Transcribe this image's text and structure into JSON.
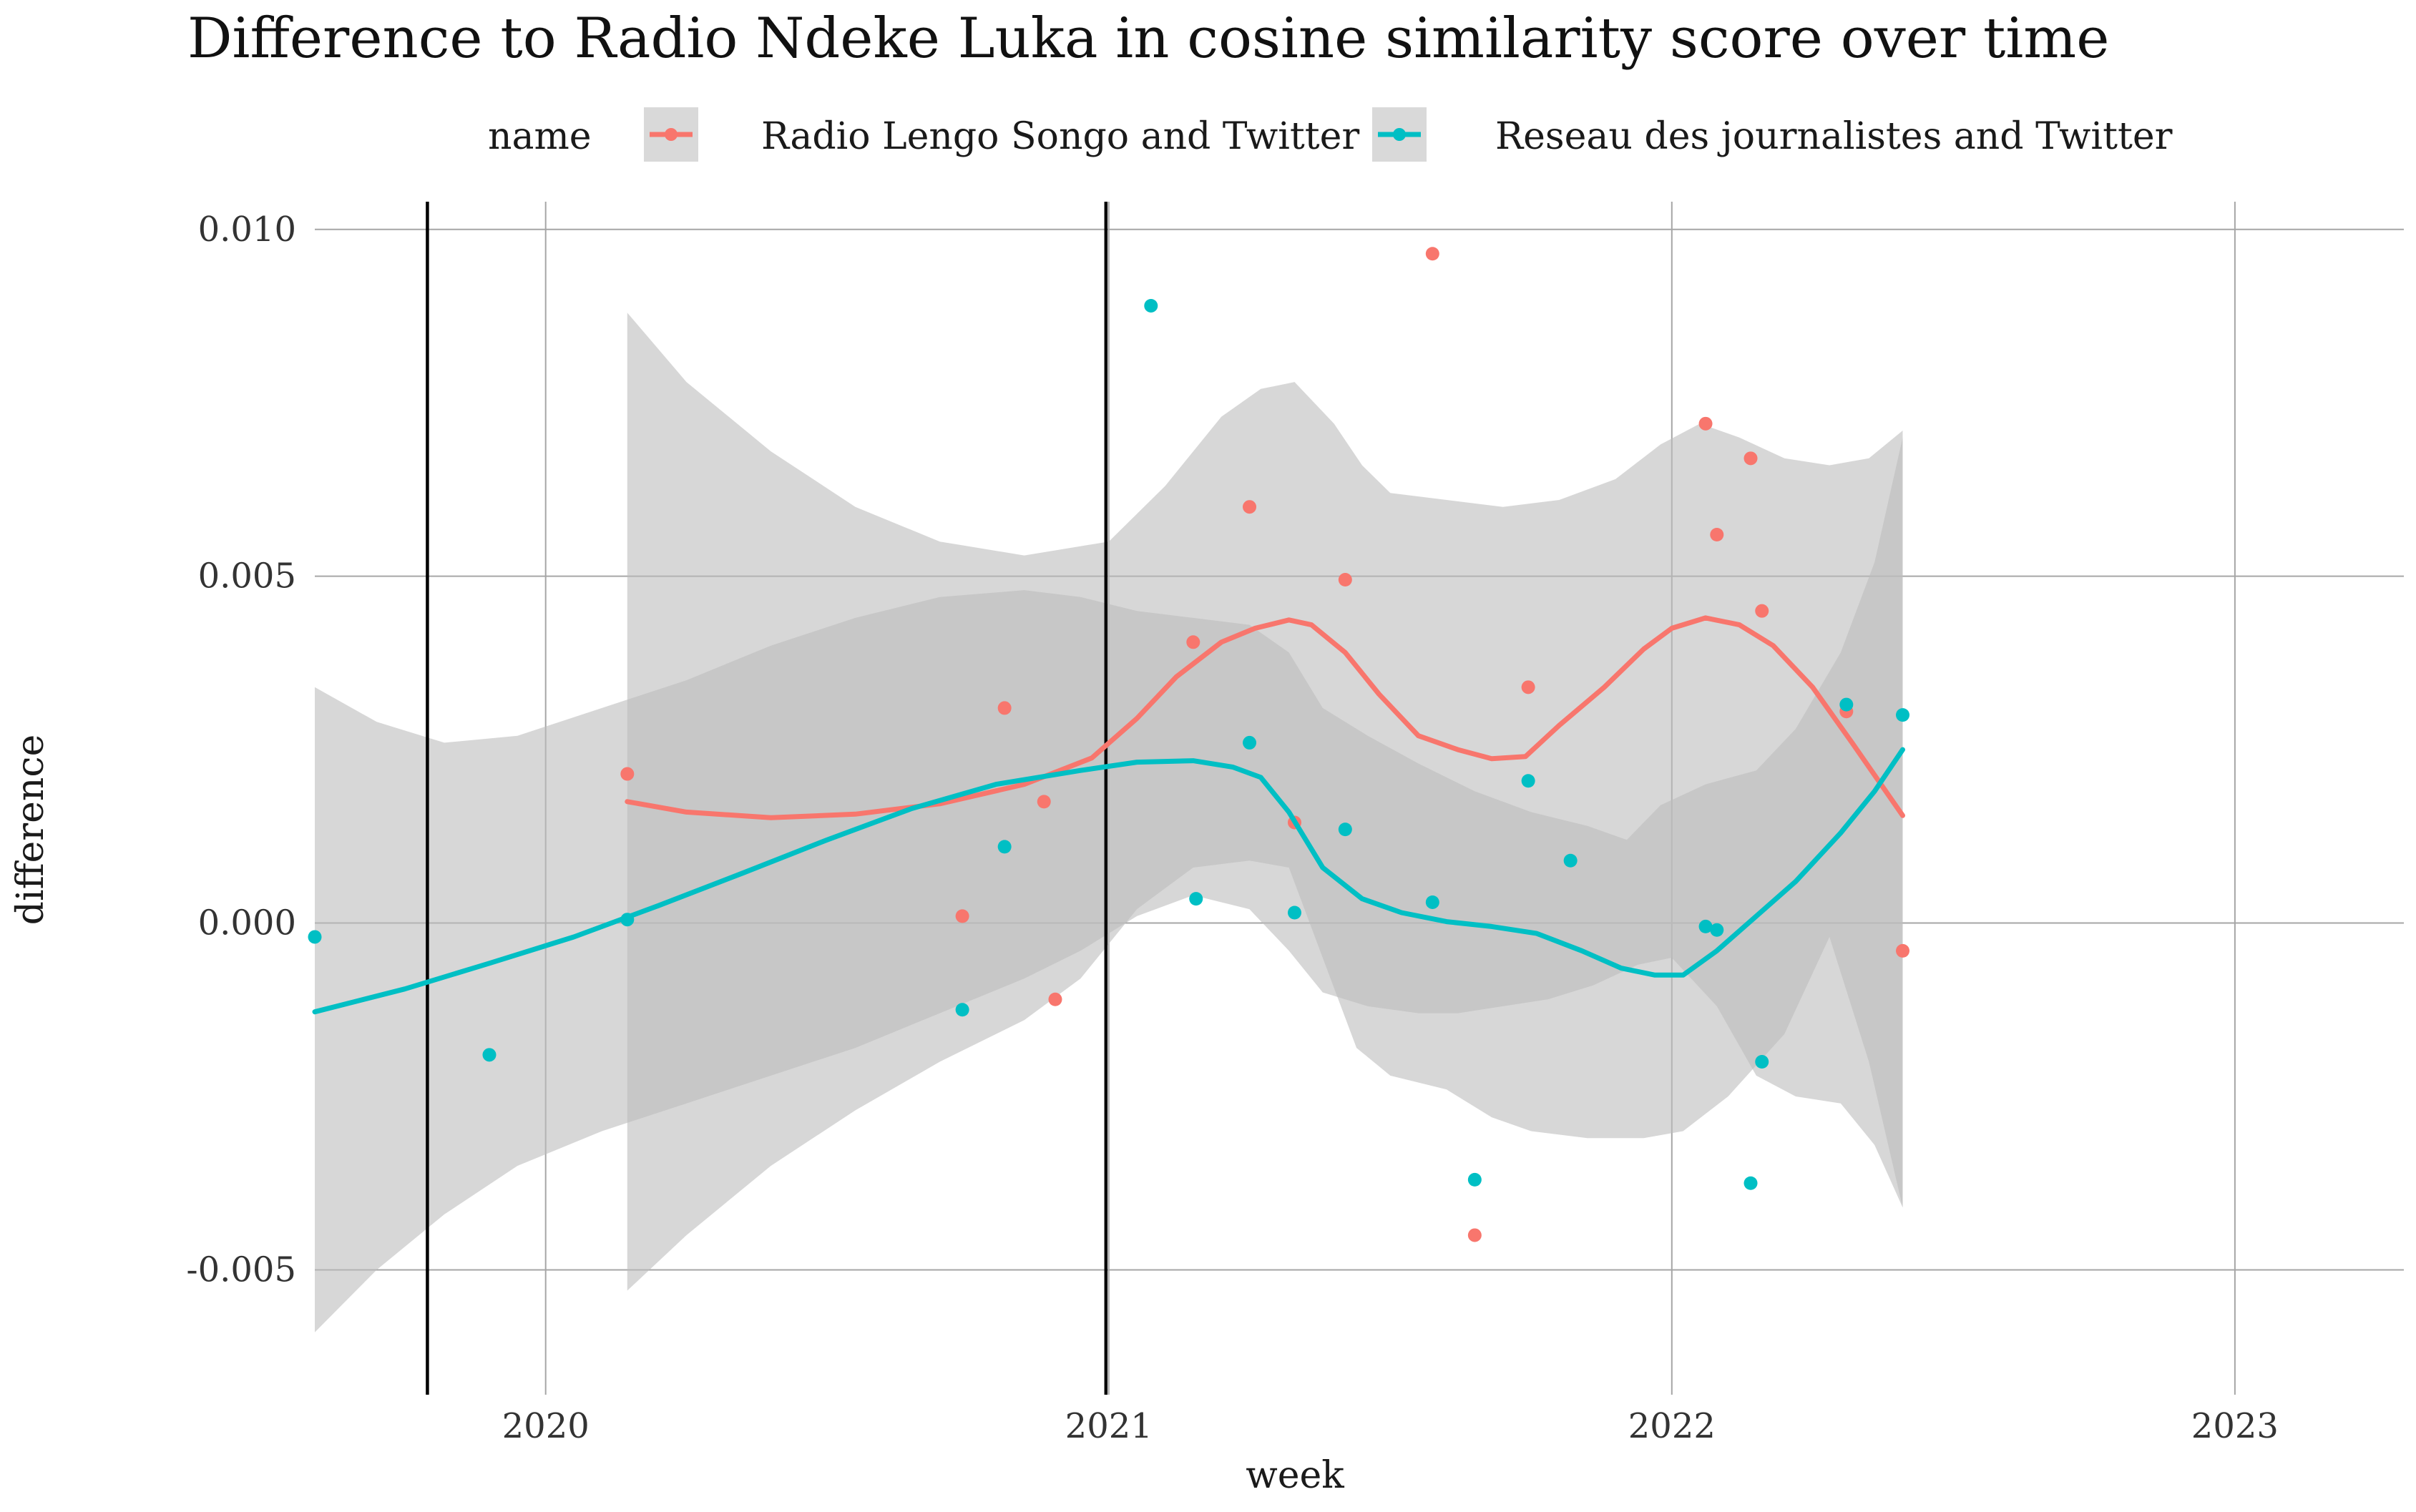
{
  "chart_data": {
    "type": "scatter",
    "title": "Difference to Radio Ndeke Luka in cosine similarity score over time",
    "xlabel": "week",
    "ylabel": "difference",
    "xlim": [
      2019.59,
      2023.3
    ],
    "ylim": [
      -0.0068,
      0.0104
    ],
    "x_ticks": [
      2020,
      2021,
      2022,
      2023
    ],
    "x_tick_labels": [
      "2020",
      "2021",
      "2022",
      "2023"
    ],
    "y_ticks": [
      -0.005,
      0.0,
      0.005,
      0.01
    ],
    "y_tick_labels": [
      "-0.005",
      "0.000",
      "0.005",
      "0.010"
    ],
    "grid": true,
    "legend": {
      "title": "name",
      "position": "top"
    },
    "vertical_lines": [
      2019.79,
      2020.995
    ],
    "series": [
      {
        "name": "Radio Lengo Songo and Twitter",
        "color": "#F8766D",
        "points": [
          [
            2020.145,
            0.00215
          ],
          [
            2020.74,
            0.0001
          ],
          [
            2020.815,
            0.0031
          ],
          [
            2020.885,
            0.00175
          ],
          [
            2020.905,
            -0.0011
          ],
          [
            2021.15,
            0.00405
          ],
          [
            2021.25,
            0.006
          ],
          [
            2021.33,
            0.00145
          ],
          [
            2021.42,
            0.00495
          ],
          [
            2021.575,
            0.00965
          ],
          [
            2021.65,
            -0.0045
          ],
          [
            2021.745,
            0.0034
          ],
          [
            2022.06,
            0.0072
          ],
          [
            2022.08,
            0.0056
          ],
          [
            2022.14,
            0.0067
          ],
          [
            2022.16,
            0.0045
          ],
          [
            2022.31,
            0.00305
          ],
          [
            2022.41,
            -0.0004
          ]
        ],
        "smooth": [
          [
            2020.145,
            0.00175
          ],
          [
            2020.25,
            0.0016
          ],
          [
            2020.4,
            0.00152
          ],
          [
            2020.55,
            0.00157
          ],
          [
            2020.7,
            0.00172
          ],
          [
            2020.85,
            0.002
          ],
          [
            2020.97,
            0.00238
          ],
          [
            2021.05,
            0.00295
          ],
          [
            2021.12,
            0.00355
          ],
          [
            2021.2,
            0.00405
          ],
          [
            2021.26,
            0.00425
          ],
          [
            2021.32,
            0.00437
          ],
          [
            2021.36,
            0.0043
          ],
          [
            2021.42,
            0.0039
          ],
          [
            2021.48,
            0.0033
          ],
          [
            2021.55,
            0.0027
          ],
          [
            2021.62,
            0.0025
          ],
          [
            2021.68,
            0.00237
          ],
          [
            2021.74,
            0.0024
          ],
          [
            2021.8,
            0.00285
          ],
          [
            2021.88,
            0.0034
          ],
          [
            2021.95,
            0.00395
          ],
          [
            2022.0,
            0.00425
          ],
          [
            2022.06,
            0.0044
          ],
          [
            2022.12,
            0.0043
          ],
          [
            2022.18,
            0.004
          ],
          [
            2022.25,
            0.0034
          ],
          [
            2022.32,
            0.0026
          ],
          [
            2022.41,
            0.00155
          ]
        ],
        "band_upper": [
          [
            2020.145,
            0.0088
          ],
          [
            2020.25,
            0.0078
          ],
          [
            2020.4,
            0.0068
          ],
          [
            2020.55,
            0.006
          ],
          [
            2020.7,
            0.0055
          ],
          [
            2020.85,
            0.0053
          ],
          [
            2021.0,
            0.0055
          ],
          [
            2021.1,
            0.0063
          ],
          [
            2021.2,
            0.0073
          ],
          [
            2021.27,
            0.0077
          ],
          [
            2021.33,
            0.0078
          ],
          [
            2021.4,
            0.0072
          ],
          [
            2021.45,
            0.0066
          ],
          [
            2021.5,
            0.0062
          ],
          [
            2021.6,
            0.0061
          ],
          [
            2021.7,
            0.006
          ],
          [
            2021.8,
            0.0061
          ],
          [
            2021.9,
            0.0064
          ],
          [
            2021.98,
            0.0069
          ],
          [
            2022.05,
            0.0072
          ],
          [
            2022.12,
            0.007
          ],
          [
            2022.2,
            0.0067
          ],
          [
            2022.28,
            0.0066
          ],
          [
            2022.35,
            0.0067
          ],
          [
            2022.41,
            0.0071
          ]
        ],
        "band_lower": [
          [
            2020.145,
            -0.0053
          ],
          [
            2020.25,
            -0.0045
          ],
          [
            2020.4,
            -0.0035
          ],
          [
            2020.55,
            -0.0027
          ],
          [
            2020.7,
            -0.002
          ],
          [
            2020.85,
            -0.0014
          ],
          [
            2020.95,
            -0.0008
          ],
          [
            2021.05,
            0.0002
          ],
          [
            2021.15,
            0.0008
          ],
          [
            2021.25,
            0.0009
          ],
          [
            2021.32,
            0.0008
          ],
          [
            2021.38,
            -0.0005
          ],
          [
            2021.44,
            -0.0018
          ],
          [
            2021.5,
            -0.0022
          ],
          [
            2021.6,
            -0.0024
          ],
          [
            2021.68,
            -0.0028
          ],
          [
            2021.75,
            -0.003
          ],
          [
            2021.85,
            -0.0031
          ],
          [
            2021.95,
            -0.0031
          ],
          [
            2022.02,
            -0.003
          ],
          [
            2022.1,
            -0.0025
          ],
          [
            2022.2,
            -0.0016
          ],
          [
            2022.28,
            -0.0002
          ],
          [
            2022.35,
            -0.002
          ],
          [
            2022.41,
            -0.0041
          ]
        ]
      },
      {
        "name": "Reseau des journalistes and Twitter",
        "color": "#00BFC4",
        "points": [
          [
            2019.59,
            -0.0002
          ],
          [
            2019.9,
            -0.0019
          ],
          [
            2020.145,
            5e-05
          ],
          [
            2020.74,
            -0.00125
          ],
          [
            2020.815,
            0.0011
          ],
          [
            2021.075,
            0.0089
          ],
          [
            2021.155,
            0.00035
          ],
          [
            2021.25,
            0.0026
          ],
          [
            2021.33,
            0.00015
          ],
          [
            2021.42,
            0.00135
          ],
          [
            2021.575,
            0.0003
          ],
          [
            2021.65,
            -0.0037
          ],
          [
            2021.745,
            0.00205
          ],
          [
            2021.82,
            0.0009
          ],
          [
            2022.06,
            -5e-05
          ],
          [
            2022.08,
            -0.0001
          ],
          [
            2022.14,
            -0.00375
          ],
          [
            2022.16,
            -0.002
          ],
          [
            2022.31,
            0.00315
          ],
          [
            2022.41,
            0.003
          ]
        ],
        "smooth": [
          [
            2019.59,
            -0.00128
          ],
          [
            2019.75,
            -0.00095
          ],
          [
            2019.9,
            -0.00058
          ],
          [
            2020.05,
            -0.0002
          ],
          [
            2020.2,
            0.00025
          ],
          [
            2020.35,
            0.00072
          ],
          [
            2020.5,
            0.0012
          ],
          [
            2020.65,
            0.00165
          ],
          [
            2020.8,
            0.002
          ],
          [
            2020.95,
            0.0022
          ],
          [
            2021.05,
            0.00232
          ],
          [
            2021.15,
            0.00234
          ],
          [
            2021.22,
            0.00225
          ],
          [
            2021.27,
            0.0021
          ],
          [
            2021.32,
            0.0016
          ],
          [
            2021.38,
            0.0008
          ],
          [
            2021.45,
            0.00035
          ],
          [
            2021.52,
            0.00015
          ],
          [
            2021.6,
            2e-05
          ],
          [
            2021.68,
            -5e-05
          ],
          [
            2021.76,
            -0.00015
          ],
          [
            2021.84,
            -0.0004
          ],
          [
            2021.91,
            -0.00065
          ],
          [
            2021.97,
            -0.00075
          ],
          [
            2022.02,
            -0.00075
          ],
          [
            2022.08,
            -0.0004
          ],
          [
            2022.15,
            0.0001
          ],
          [
            2022.22,
            0.0006
          ],
          [
            2022.3,
            0.0013
          ],
          [
            2022.36,
            0.0019
          ],
          [
            2022.41,
            0.0025
          ]
        ],
        "band_upper": [
          [
            2019.59,
            0.0034
          ],
          [
            2019.7,
            0.0029
          ],
          [
            2019.82,
            0.0026
          ],
          [
            2019.95,
            0.0027
          ],
          [
            2020.1,
            0.0031
          ],
          [
            2020.25,
            0.0035
          ],
          [
            2020.4,
            0.004
          ],
          [
            2020.55,
            0.0044
          ],
          [
            2020.7,
            0.0047
          ],
          [
            2020.85,
            0.0048
          ],
          [
            2020.95,
            0.0047
          ],
          [
            2021.05,
            0.0045
          ],
          [
            2021.15,
            0.0044
          ],
          [
            2021.25,
            0.0043
          ],
          [
            2021.32,
            0.0039
          ],
          [
            2021.38,
            0.0031
          ],
          [
            2021.46,
            0.0027
          ],
          [
            2021.55,
            0.0023
          ],
          [
            2021.65,
            0.0019
          ],
          [
            2021.75,
            0.0016
          ],
          [
            2021.85,
            0.0014
          ],
          [
            2021.92,
            0.0012
          ],
          [
            2021.98,
            0.0017
          ],
          [
            2022.06,
            0.002
          ],
          [
            2022.15,
            0.0022
          ],
          [
            2022.22,
            0.0028
          ],
          [
            2022.3,
            0.0039
          ],
          [
            2022.36,
            0.0052
          ],
          [
            2022.41,
            0.007
          ]
        ],
        "band_lower": [
          [
            2019.59,
            -0.0059
          ],
          [
            2019.7,
            -0.005
          ],
          [
            2019.82,
            -0.0042
          ],
          [
            2019.95,
            -0.0035
          ],
          [
            2020.1,
            -0.003
          ],
          [
            2020.25,
            -0.0026
          ],
          [
            2020.4,
            -0.0022
          ],
          [
            2020.55,
            -0.0018
          ],
          [
            2020.7,
            -0.0013
          ],
          [
            2020.85,
            -0.0008
          ],
          [
            2020.95,
            -0.0004
          ],
          [
            2021.05,
            0.0001
          ],
          [
            2021.15,
            0.0004
          ],
          [
            2021.25,
            0.0002
          ],
          [
            2021.32,
            -0.0004
          ],
          [
            2021.38,
            -0.001
          ],
          [
            2021.46,
            -0.0012
          ],
          [
            2021.55,
            -0.0013
          ],
          [
            2021.62,
            -0.0013
          ],
          [
            2021.7,
            -0.0012
          ],
          [
            2021.78,
            -0.0011
          ],
          [
            2021.86,
            -0.0009
          ],
          [
            2021.94,
            -0.0006
          ],
          [
            2022.0,
            -0.0005
          ],
          [
            2022.08,
            -0.0012
          ],
          [
            2022.15,
            -0.0022
          ],
          [
            2022.22,
            -0.0025
          ],
          [
            2022.3,
            -0.0026
          ],
          [
            2022.36,
            -0.0032
          ],
          [
            2022.41,
            -0.0041
          ]
        ]
      }
    ]
  }
}
